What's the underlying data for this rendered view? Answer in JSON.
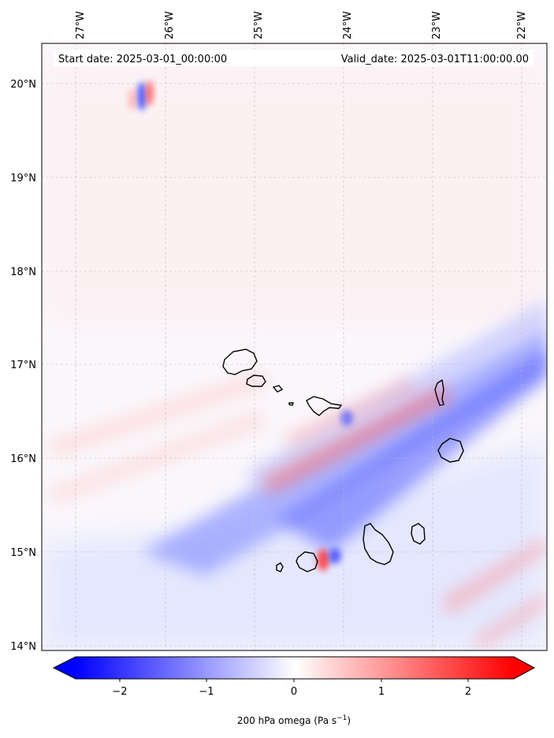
{
  "map": {
    "lon_ticks": [
      "27°W",
      "26°W",
      "25°W",
      "24°W",
      "23°W",
      "22°W"
    ],
    "lat_ticks": [
      "20°N",
      "19°N",
      "18°N",
      "17°N",
      "16°N",
      "15°N",
      "14°N"
    ],
    "start_date": "Start date: 2025-03-01_00:00:00",
    "valid_date": "Valid_date: 2025-03-01T11:00:00.00",
    "gridlines": true,
    "projection": "lat-lon",
    "extent": {
      "lon": [
        -27.35,
        -21.75
      ],
      "lat": [
        13.95,
        20.4
      ]
    }
  },
  "colorbar": {
    "ticks": [
      "−2",
      "−1",
      "0",
      "1",
      "2"
    ],
    "range": [
      -2.6,
      2.6
    ],
    "extend": "both",
    "cmap": "bwr",
    "colors": {
      "negative": "#0000ff",
      "zero": "#ffffff",
      "positive": "#ff0000"
    },
    "label_main": "200 hPa omega (Pa s",
    "label_exp": "−1",
    "label_close": ")"
  }
}
